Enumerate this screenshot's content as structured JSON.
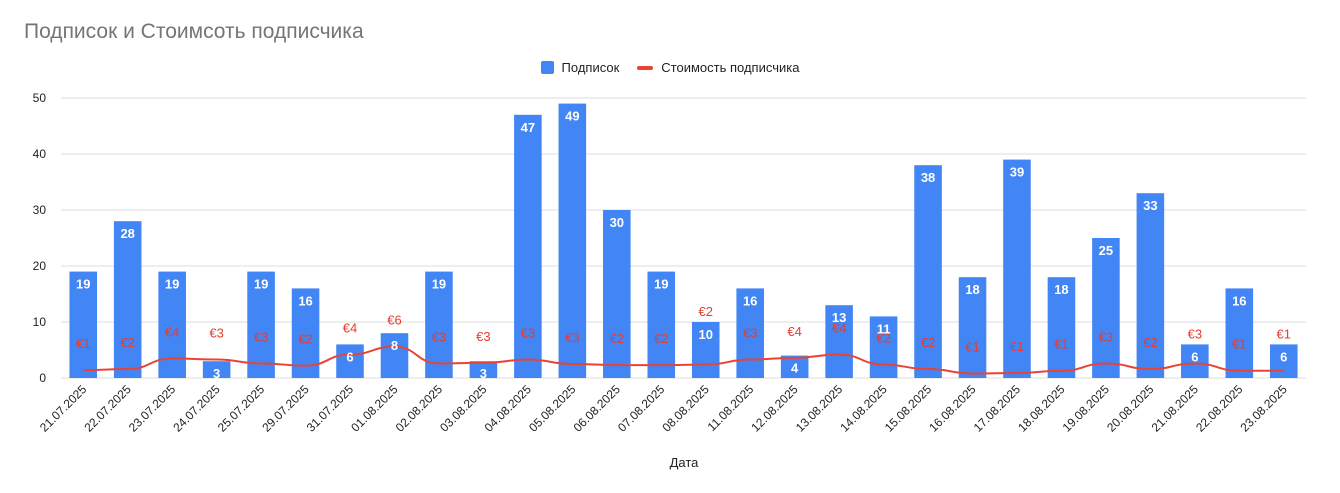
{
  "chart_data": {
    "type": "bar",
    "title": "Подписок и Стоимсоть подписчика",
    "xlabel": "Дата",
    "ylabel": "",
    "ylim": [
      0,
      50
    ],
    "yticks": [
      "0",
      "10",
      "20",
      "30",
      "40",
      "50"
    ],
    "grid": true,
    "legend_position": "top-center",
    "categories": [
      "21.07.2025",
      "22.07.2025",
      "23.07.2025",
      "24.07.2025",
      "25.07.2025",
      "29.07.2025",
      "31.07.2025",
      "01.08.2025",
      "02.08.2025",
      "03.08.2025",
      "04.08.2025",
      "05.08.2025",
      "06.08.2025",
      "07.08.2025",
      "08.08.2025",
      "11.08.2025",
      "12.08.2025",
      "13.08.2025",
      "14.08.2025",
      "15.08.2025",
      "16.08.2025",
      "17.08.2025",
      "18.08.2025",
      "19.08.2025",
      "20.08.2025",
      "21.08.2025",
      "22.08.2025",
      "23.08.2025"
    ],
    "series": [
      {
        "name": "Подписок",
        "type": "bar",
        "color": "#4285f4",
        "values": [
          19,
          28,
          19,
          3,
          19,
          16,
          6,
          8,
          19,
          3,
          47,
          49,
          30,
          19,
          10,
          16,
          4,
          13,
          11,
          38,
          18,
          39,
          18,
          25,
          33,
          6,
          16,
          6
        ]
      },
      {
        "name": "Стоимость подписчика",
        "type": "line",
        "color": "#ea4335",
        "values": [
          1.4,
          1.6,
          3.5,
          3.3,
          2.6,
          2.2,
          4.2,
          5.6,
          2.6,
          2.7,
          3.3,
          2.5,
          2.3,
          2.3,
          2.4,
          3.3,
          3.6,
          4.2,
          2.4,
          1.6,
          0.8,
          0.9,
          1.3,
          2.6,
          1.6,
          2.6,
          1.3,
          1.3
        ],
        "labels": [
          "€1",
          "€2",
          "€4",
          "€3",
          "€3",
          "€2",
          "€4",
          "€6",
          "€3",
          "€3",
          "€3",
          "€3",
          "€2",
          "€2",
          "€2",
          "€3",
          "€4",
          "€4",
          "€2",
          "€2",
          "€1",
          "€1",
          "€1",
          "€3",
          "€2",
          "€3",
          "€1",
          "€1"
        ]
      }
    ]
  }
}
